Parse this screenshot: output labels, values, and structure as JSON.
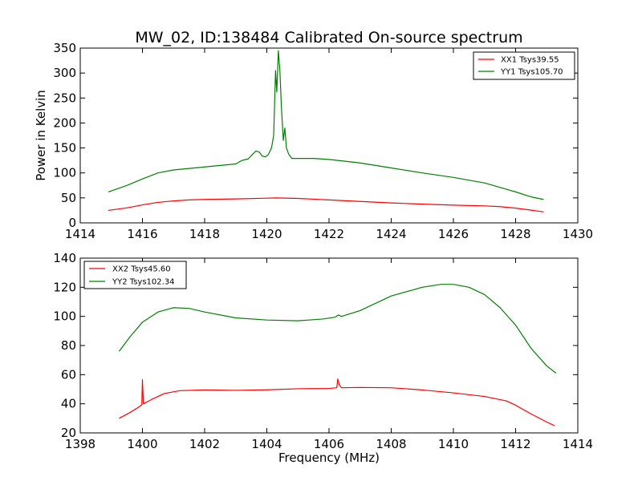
{
  "figure": {
    "title": "MW_02, ID:138484 Calibrated On-source spectrum"
  },
  "chart_data": [
    {
      "type": "line",
      "title": "MW_02, ID:138484 Calibrated On-source spectrum",
      "xlabel": "",
      "ylabel": "Power in Kelvin",
      "xlim": [
        1414,
        1430
      ],
      "ylim": [
        0,
        350
      ],
      "xticks": [
        1414,
        1416,
        1418,
        1420,
        1422,
        1424,
        1426,
        1428,
        1430
      ],
      "yticks": [
        0,
        50,
        100,
        150,
        200,
        250,
        300,
        350
      ],
      "grid": false,
      "legend_position": "top-right",
      "series": [
        {
          "name": "XX1 Tsys39.55",
          "color": "#ff0000",
          "points": [
            [
              1414.9,
              25
            ],
            [
              1415.5,
              30
            ],
            [
              1416,
              36
            ],
            [
              1416.5,
              41
            ],
            [
              1417,
              44
            ],
            [
              1417.5,
              46
            ],
            [
              1418,
              47
            ],
            [
              1419,
              48
            ],
            [
              1420,
              49.5
            ],
            [
              1420.3,
              50
            ],
            [
              1421,
              49
            ],
            [
              1422,
              46
            ],
            [
              1423,
              43
            ],
            [
              1424,
              40
            ],
            [
              1425,
              37.5
            ],
            [
              1426,
              35.5
            ],
            [
              1427,
              34
            ],
            [
              1427.5,
              32.5
            ],
            [
              1428,
              29.5
            ],
            [
              1428.5,
              25.5
            ],
            [
              1428.9,
              22
            ]
          ]
        },
        {
          "name": "YY1 Tsys105.70",
          "color": "#008000",
          "points": [
            [
              1414.9,
              62
            ],
            [
              1415.5,
              75
            ],
            [
              1416,
              88
            ],
            [
              1416.5,
              100
            ],
            [
              1417,
              106
            ],
            [
              1417.5,
              109
            ],
            [
              1418,
              112
            ],
            [
              1418.5,
              115
            ],
            [
              1419,
              118
            ],
            [
              1419.2,
              125
            ],
            [
              1419.4,
              128
            ],
            [
              1419.55,
              138
            ],
            [
              1419.65,
              144
            ],
            [
              1419.75,
              142
            ],
            [
              1419.85,
              134
            ],
            [
              1419.95,
              132
            ],
            [
              1420.05,
              137
            ],
            [
              1420.15,
              150
            ],
            [
              1420.22,
              175
            ],
            [
              1420.28,
              305
            ],
            [
              1420.32,
              262
            ],
            [
              1420.37,
              345
            ],
            [
              1420.42,
              305
            ],
            [
              1420.47,
              230
            ],
            [
              1420.53,
              165
            ],
            [
              1420.58,
              190
            ],
            [
              1420.63,
              150
            ],
            [
              1420.7,
              138
            ],
            [
              1420.8,
              129
            ],
            [
              1421,
              129
            ],
            [
              1421.5,
              129
            ],
            [
              1422,
              127
            ],
            [
              1423,
              120
            ],
            [
              1424,
              110
            ],
            [
              1425,
              100
            ],
            [
              1426,
              91
            ],
            [
              1427,
              80
            ],
            [
              1428,
              62
            ],
            [
              1428.5,
              52
            ],
            [
              1428.9,
              47
            ]
          ]
        }
      ]
    },
    {
      "type": "line",
      "title": "",
      "xlabel": "Frequency (MHz)",
      "ylabel": "",
      "xlim": [
        1398,
        1414
      ],
      "ylim": [
        20,
        140
      ],
      "xticks": [
        1398,
        1400,
        1402,
        1404,
        1406,
        1408,
        1410,
        1412,
        1414
      ],
      "yticks": [
        20,
        40,
        60,
        80,
        100,
        120,
        140
      ],
      "grid": false,
      "legend_position": "top-left",
      "series": [
        {
          "name": "XX2 Tsys45.60",
          "color": "#ff0000",
          "points": [
            [
              1399.25,
              30
            ],
            [
              1399.6,
              34
            ],
            [
              1399.9,
              38
            ],
            [
              1399.98,
              39.5
            ],
            [
              1400.0,
              56.5
            ],
            [
              1400.03,
              40
            ],
            [
              1400.3,
              43
            ],
            [
              1400.7,
              47
            ],
            [
              1401.2,
              49
            ],
            [
              1402,
              49.5
            ],
            [
              1403,
              49.2
            ],
            [
              1404,
              49.6
            ],
            [
              1405,
              50.3
            ],
            [
              1406,
              50.5
            ],
            [
              1406.25,
              51
            ],
            [
              1406.28,
              57
            ],
            [
              1406.33,
              53
            ],
            [
              1406.4,
              51
            ],
            [
              1407,
              51.2
            ],
            [
              1408,
              51
            ],
            [
              1409,
              49.5
            ],
            [
              1410,
              47.5
            ],
            [
              1411,
              45
            ],
            [
              1411.7,
              42
            ],
            [
              1412,
              39
            ],
            [
              1412.5,
              33
            ],
            [
              1413,
              27.5
            ],
            [
              1413.25,
              25
            ]
          ]
        },
        {
          "name": "YY2 Tsys102.34",
          "color": "#008000",
          "points": [
            [
              1399.25,
              76
            ],
            [
              1399.6,
              86
            ],
            [
              1400,
              96
            ],
            [
              1400.5,
              103
            ],
            [
              1401,
              106
            ],
            [
              1401.5,
              105.5
            ],
            [
              1402,
              103
            ],
            [
              1403,
              99
            ],
            [
              1404,
              97.5
            ],
            [
              1405,
              97
            ],
            [
              1405.8,
              98.2
            ],
            [
              1406.2,
              99.5
            ],
            [
              1406.3,
              101
            ],
            [
              1406.4,
              100
            ],
            [
              1407,
              104
            ],
            [
              1408,
              114
            ],
            [
              1409,
              120
            ],
            [
              1409.6,
              122
            ],
            [
              1410,
              122
            ],
            [
              1410.5,
              120
            ],
            [
              1411,
              115
            ],
            [
              1411.5,
              106
            ],
            [
              1412,
              94
            ],
            [
              1412.5,
              78
            ],
            [
              1413,
              66
            ],
            [
              1413.3,
              61
            ]
          ]
        }
      ]
    }
  ]
}
